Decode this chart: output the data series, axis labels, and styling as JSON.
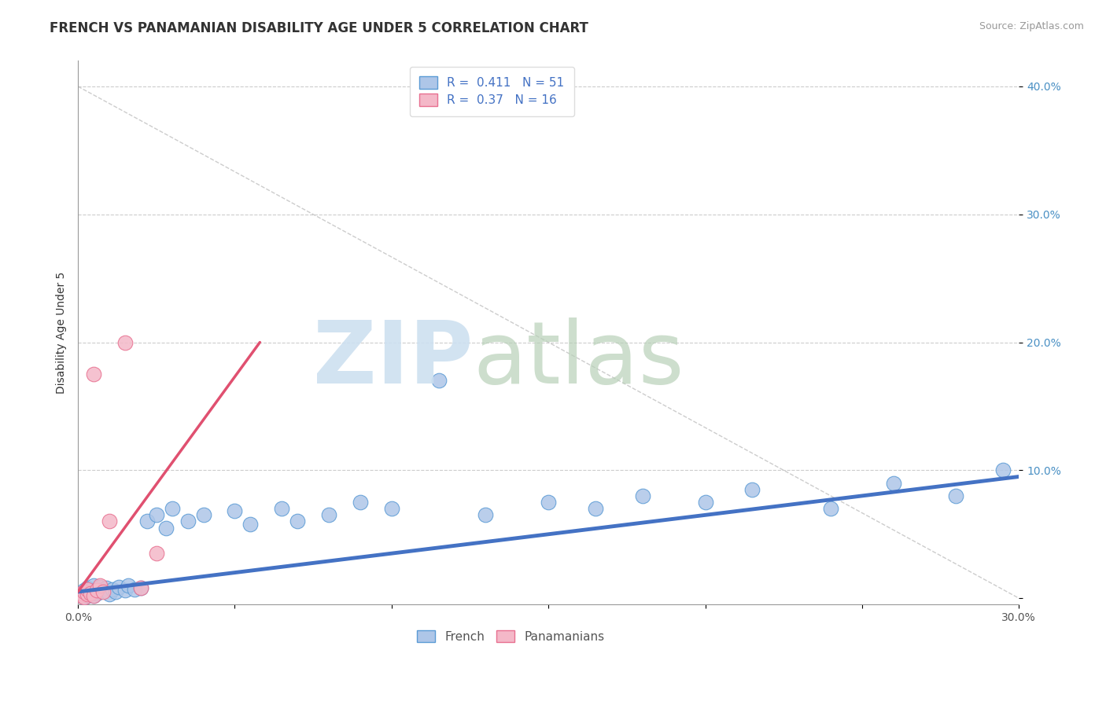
{
  "title": "FRENCH VS PANAMANIAN DISABILITY AGE UNDER 5 CORRELATION CHART",
  "source": "Source: ZipAtlas.com",
  "ylabel": "Disability Age Under 5",
  "xlim": [
    0.0,
    0.3
  ],
  "ylim": [
    -0.005,
    0.42
  ],
  "french_R": 0.411,
  "french_N": 51,
  "panamanian_R": 0.37,
  "panamanian_N": 16,
  "french_color": "#aec6e8",
  "french_edge_color": "#5b9bd5",
  "french_line_color": "#4472c4",
  "panamanian_color": "#f4b8c8",
  "panamanian_edge_color": "#e87090",
  "panamanian_line_color": "#e05070",
  "diag_color": "#c0c0c0",
  "watermark_zip_color": "#cde0f0",
  "watermark_atlas_color": "#b8d0b8",
  "title_fontsize": 12,
  "source_fontsize": 9,
  "label_fontsize": 10,
  "tick_fontsize": 10,
  "legend_fontsize": 11,
  "french_x": [
    0.001,
    0.001,
    0.002,
    0.002,
    0.002,
    0.003,
    0.003,
    0.003,
    0.004,
    0.004,
    0.005,
    0.005,
    0.005,
    0.006,
    0.006,
    0.007,
    0.007,
    0.008,
    0.009,
    0.01,
    0.011,
    0.012,
    0.013,
    0.015,
    0.016,
    0.018,
    0.02,
    0.022,
    0.025,
    0.028,
    0.03,
    0.035,
    0.04,
    0.05,
    0.055,
    0.065,
    0.07,
    0.08,
    0.09,
    0.1,
    0.115,
    0.13,
    0.15,
    0.165,
    0.18,
    0.2,
    0.215,
    0.24,
    0.26,
    0.28,
    0.295
  ],
  "french_y": [
    0.002,
    0.004,
    0.001,
    0.003,
    0.006,
    0.002,
    0.004,
    0.008,
    0.003,
    0.005,
    0.002,
    0.006,
    0.01,
    0.004,
    0.007,
    0.005,
    0.009,
    0.006,
    0.008,
    0.003,
    0.007,
    0.005,
    0.009,
    0.006,
    0.01,
    0.007,
    0.008,
    0.06,
    0.065,
    0.055,
    0.07,
    0.06,
    0.065,
    0.068,
    0.058,
    0.07,
    0.06,
    0.065,
    0.075,
    0.07,
    0.17,
    0.065,
    0.075,
    0.07,
    0.08,
    0.075,
    0.085,
    0.07,
    0.09,
    0.08,
    0.1
  ],
  "panamanian_x": [
    0.001,
    0.001,
    0.002,
    0.002,
    0.003,
    0.003,
    0.004,
    0.005,
    0.005,
    0.006,
    0.007,
    0.008,
    0.01,
    0.015,
    0.02,
    0.025
  ],
  "panamanian_y": [
    0.002,
    0.004,
    0.001,
    0.005,
    0.003,
    0.007,
    0.004,
    0.002,
    0.175,
    0.006,
    0.01,
    0.005,
    0.06,
    0.2,
    0.008,
    0.035
  ]
}
